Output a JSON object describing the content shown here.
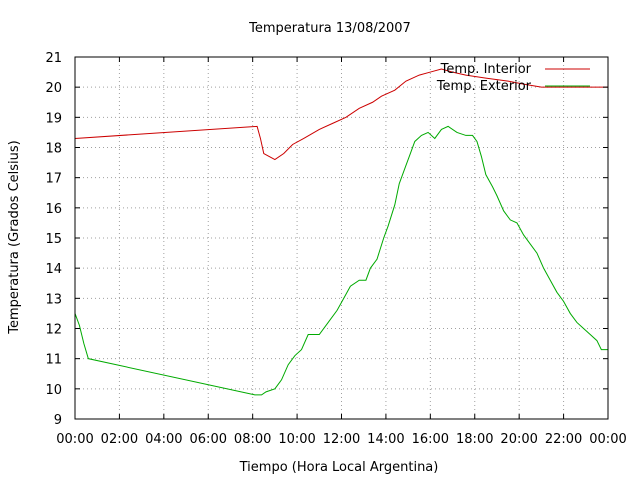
{
  "chart_data": {
    "type": "line",
    "title": "Temperatura 13/08/2007",
    "xlabel": "Tiempo (Hora Local Argentina)",
    "ylabel": "Temperatura (Grados Celsius)",
    "xlim": [
      0,
      24
    ],
    "ylim": [
      9,
      21
    ],
    "grid": true,
    "legend_position": "top-right",
    "xticks": [
      {
        "value": 0,
        "label": "00:00"
      },
      {
        "value": 2,
        "label": "02:00"
      },
      {
        "value": 4,
        "label": "04:00"
      },
      {
        "value": 6,
        "label": "06:00"
      },
      {
        "value": 8,
        "label": "08:00"
      },
      {
        "value": 10,
        "label": "10:00"
      },
      {
        "value": 12,
        "label": "12:00"
      },
      {
        "value": 14,
        "label": "14:00"
      },
      {
        "value": 16,
        "label": "16:00"
      },
      {
        "value": 18,
        "label": "18:00"
      },
      {
        "value": 20,
        "label": "20:00"
      },
      {
        "value": 22,
        "label": "22:00"
      },
      {
        "value": 24,
        "label": "00:00"
      }
    ],
    "yticks": [
      9,
      10,
      11,
      12,
      13,
      14,
      15,
      16,
      17,
      18,
      19,
      20,
      21
    ],
    "series": [
      {
        "name": "Temp. Interior",
        "color": "#cc0000",
        "points": [
          [
            0,
            18.3
          ],
          [
            8.2,
            18.7
          ],
          [
            8.35,
            18.3
          ],
          [
            8.5,
            17.8
          ],
          [
            8.75,
            17.7
          ],
          [
            9.0,
            17.6
          ],
          [
            9.4,
            17.8
          ],
          [
            9.8,
            18.1
          ],
          [
            10.3,
            18.3
          ],
          [
            11.0,
            18.6
          ],
          [
            11.6,
            18.8
          ],
          [
            12.2,
            19.0
          ],
          [
            12.8,
            19.3
          ],
          [
            13.4,
            19.5
          ],
          [
            13.8,
            19.7
          ],
          [
            14.4,
            19.9
          ],
          [
            14.9,
            20.2
          ],
          [
            15.5,
            20.4
          ],
          [
            16.0,
            20.5
          ],
          [
            16.5,
            20.6
          ],
          [
            17.0,
            20.5
          ],
          [
            17.6,
            20.4
          ],
          [
            18.5,
            20.3
          ],
          [
            19.5,
            20.2
          ],
          [
            20.2,
            20.1
          ],
          [
            21.0,
            20.0
          ],
          [
            24.0,
            20.0
          ]
        ]
      },
      {
        "name": "Temp. Exterior",
        "color": "#00aa00",
        "points": [
          [
            0,
            12.5
          ],
          [
            0.2,
            12.1
          ],
          [
            0.4,
            11.5
          ],
          [
            0.6,
            11.0
          ],
          [
            8.1,
            9.8
          ],
          [
            8.4,
            9.8
          ],
          [
            8.6,
            9.9
          ],
          [
            9.0,
            10.0
          ],
          [
            9.3,
            10.3
          ],
          [
            9.6,
            10.8
          ],
          [
            9.9,
            11.1
          ],
          [
            10.2,
            11.3
          ],
          [
            10.5,
            11.8
          ],
          [
            11.0,
            11.8
          ],
          [
            11.4,
            12.2
          ],
          [
            11.8,
            12.6
          ],
          [
            12.1,
            13.0
          ],
          [
            12.4,
            13.4
          ],
          [
            12.8,
            13.6
          ],
          [
            13.1,
            13.6
          ],
          [
            13.3,
            14.0
          ],
          [
            13.6,
            14.3
          ],
          [
            13.9,
            15.0
          ],
          [
            14.1,
            15.4
          ],
          [
            14.4,
            16.1
          ],
          [
            14.6,
            16.8
          ],
          [
            14.9,
            17.4
          ],
          [
            15.1,
            17.8
          ],
          [
            15.3,
            18.2
          ],
          [
            15.6,
            18.4
          ],
          [
            15.9,
            18.5
          ],
          [
            16.2,
            18.3
          ],
          [
            16.5,
            18.6
          ],
          [
            16.8,
            18.7
          ],
          [
            17.2,
            18.5
          ],
          [
            17.6,
            18.4
          ],
          [
            17.9,
            18.4
          ],
          [
            18.1,
            18.2
          ],
          [
            18.3,
            17.7
          ],
          [
            18.5,
            17.1
          ],
          [
            18.8,
            16.7
          ],
          [
            19.0,
            16.4
          ],
          [
            19.3,
            15.9
          ],
          [
            19.6,
            15.6
          ],
          [
            19.9,
            15.5
          ],
          [
            20.2,
            15.1
          ],
          [
            20.5,
            14.8
          ],
          [
            20.8,
            14.5
          ],
          [
            21.1,
            14.0
          ],
          [
            21.4,
            13.6
          ],
          [
            21.7,
            13.2
          ],
          [
            22.0,
            12.9
          ],
          [
            22.3,
            12.5
          ],
          [
            22.6,
            12.2
          ],
          [
            22.9,
            12.0
          ],
          [
            23.2,
            11.8
          ],
          [
            23.5,
            11.6
          ],
          [
            23.7,
            11.3
          ],
          [
            24.0,
            11.3
          ]
        ]
      }
    ]
  }
}
